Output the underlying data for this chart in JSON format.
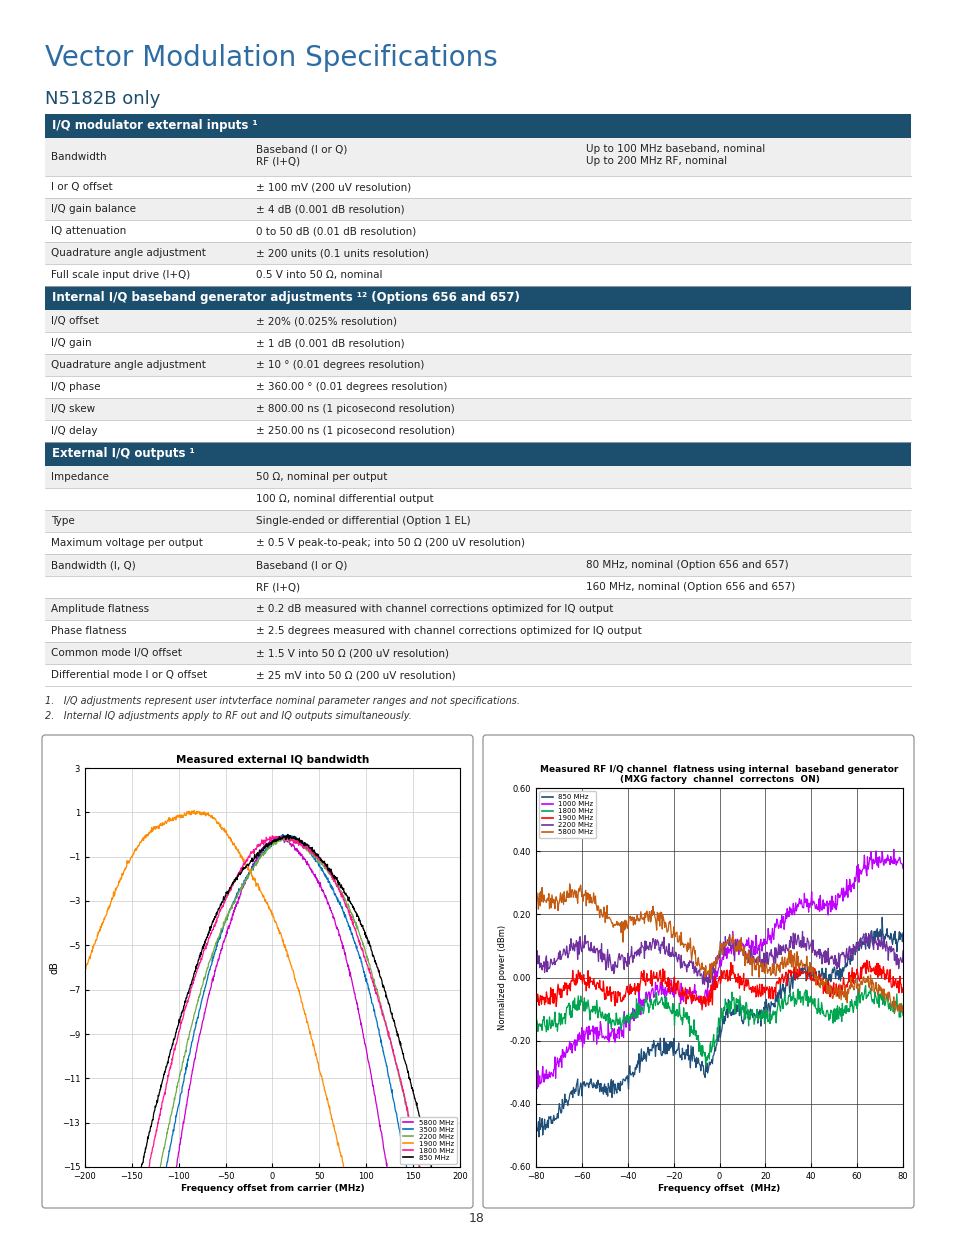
{
  "title": "Vector Modulation Specifications",
  "subtitle": "N5182B only",
  "header_color": "#1c4e6e",
  "header_text_color": "#ffffff",
  "row_bg_light": "#efefef",
  "row_bg_white": "#ffffff",
  "border_color": "#aaaaaa",
  "text_color": "#222222",
  "title_color": "#2e6da4",
  "section1_header": "I/Q modulator external inputs ¹",
  "section1_rows": [
    [
      "Bandwidth",
      "Baseband (I or Q)\nRF (I+Q)",
      "Up to 100 MHz baseband, nominal\nUp to 200 MHz RF, nominal"
    ],
    [
      "I or Q offset",
      "± 100 mV (200 uV resolution)",
      ""
    ],
    [
      "I/Q gain balance",
      "± 4 dB (0.001 dB resolution)",
      ""
    ],
    [
      "IQ attenuation",
      "0 to 50 dB (0.01 dB resolution)",
      ""
    ],
    [
      "Quadrature angle adjustment",
      "± 200 units (0.1 units resolution)",
      ""
    ],
    [
      "Full scale input drive (I+Q)",
      "0.5 V into 50 Ω, nominal",
      ""
    ]
  ],
  "section2_header": "Internal I/Q baseband generator adjustments ¹² (Options 656 and 657)",
  "section2_rows": [
    [
      "I/Q offset",
      "± 20% (0.025% resolution)",
      ""
    ],
    [
      "I/Q gain",
      "± 1 dB (0.001 dB resolution)",
      ""
    ],
    [
      "Quadrature angle adjustment",
      "± 10 ° (0.01 degrees resolution)",
      ""
    ],
    [
      "I/Q phase",
      "± 360.00 ° (0.01 degrees resolution)",
      ""
    ],
    [
      "I/Q skew",
      "± 800.00 ns (1 picosecond resolution)",
      ""
    ],
    [
      "I/Q delay",
      "± 250.00 ns (1 picosecond resolution)",
      ""
    ]
  ],
  "section3_header": "External I/Q outputs ¹",
  "section3_rows": [
    [
      "Impedance",
      "50 Ω, nominal per output",
      ""
    ],
    [
      "",
      "100 Ω, nominal differential output",
      ""
    ],
    [
      "Type",
      "Single-ended or differential (Option 1 EL)",
      ""
    ],
    [
      "Maximum voltage per output",
      "± 0.5 V peak-to-peak; into 50 Ω (200 uV resolution)",
      ""
    ],
    [
      "Bandwidth (I, Q)",
      "Baseband (I or Q)",
      "80 MHz, nominal (Option 656 and 657)"
    ],
    [
      "",
      "RF (I+Q)",
      "160 MHz, nominal (Option 656 and 657)"
    ],
    [
      "Amplitude flatness",
      "± 0.2 dB measured with channel corrections optimized for IQ output",
      ""
    ],
    [
      "Phase flatness",
      "± 2.5 degrees measured with channel corrections optimized for IQ output",
      ""
    ],
    [
      "Common mode I/Q offset",
      "± 1.5 V into 50 Ω (200 uV resolution)",
      ""
    ],
    [
      "Differential mode I or Q offset",
      "± 25 mV into 50 Ω (200 uV resolution)",
      ""
    ]
  ],
  "footnotes": [
    "1.   I/Q adjustments represent user intvterface nominal parameter ranges and not specifications.",
    "2.   Internal IQ adjustments apply to RF out and IQ outputs simultaneously."
  ],
  "chart1_title": "Measured external IQ bandwidth",
  "chart1_xlabel": "Frequency offset from carrier (MHz)",
  "chart1_ylabel": "dB",
  "chart1_legend": [
    "5800 MHz",
    "3500 MHz",
    "2200 MHz",
    "1900 MHz",
    "1800 MHz",
    "850 MHz"
  ],
  "chart1_colors": [
    "#cc00cc",
    "#0070c0",
    "#70ad47",
    "#ff8c00",
    "#ff69b4",
    "#000000"
  ],
  "chart2_title": "Measured RF I/Q channel  flatness using internal  baseband generator\n(MXG factory  channel  correctons  ON)",
  "chart2_xlabel": "Frequency offset  (MHz)",
  "chart2_ylabel": "Normalized power (dBm)",
  "chart2_legend": [
    "850 MHz",
    "1000 MHz",
    "1800 MHz",
    "1900 MHz",
    "2200 MHz",
    "5800 MHz"
  ],
  "chart2_colors": [
    "#1f4e79",
    "#bf00ff",
    "#00a550",
    "#ff0000",
    "#7030a0",
    "#c55a11"
  ],
  "page_number": "18"
}
